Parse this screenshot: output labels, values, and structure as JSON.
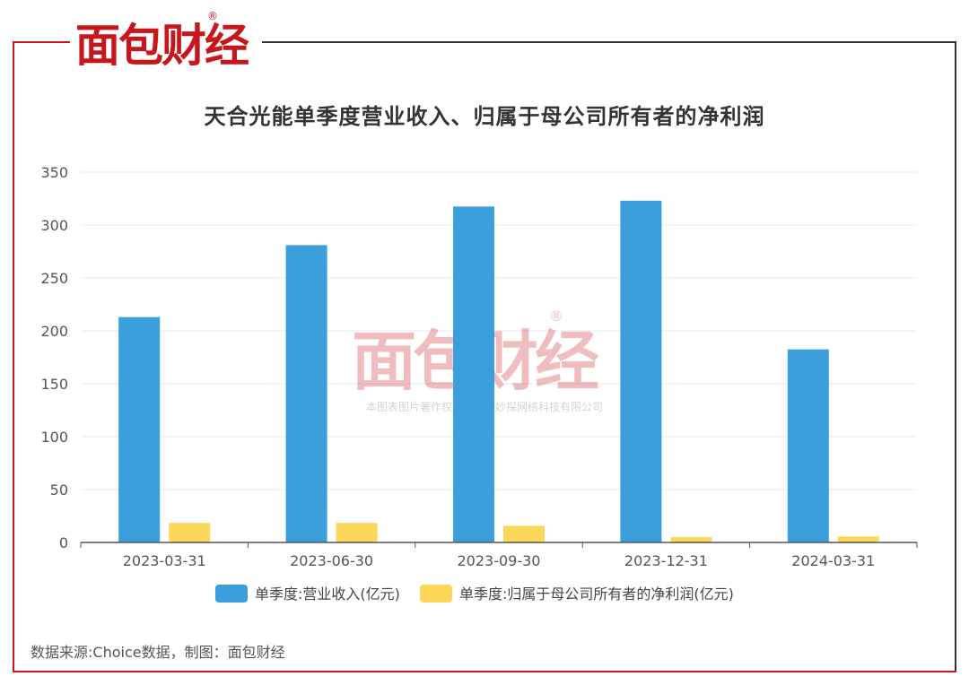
{
  "brand": {
    "logo_text": "面包财经",
    "registered_mark": "®"
  },
  "watermark": {
    "logo_text": "面包财经",
    "registered_mark": "®",
    "copyright": "本图表图片著作权属于上海妙探网络科技有限公司"
  },
  "source_note": "数据来源:Choice数据，制图：面包财经",
  "colors": {
    "frame_red": "#c8161d",
    "frame_dark": "#333333",
    "revenue": "#3a9fdb",
    "profit": "#fdd75a"
  },
  "chart_data": {
    "type": "bar",
    "title": "天合光能单季度营业收入、归属于母公司所有者的净利润",
    "categories": [
      "2023-03-31",
      "2023-06-30",
      "2023-09-30",
      "2023-12-31",
      "2024-03-31"
    ],
    "series": [
      {
        "name": "单季度:营业收入(亿元)",
        "values": [
          213.0,
          281.0,
          317.5,
          323.0,
          182.5
        ],
        "color": "#3a9fdb"
      },
      {
        "name": "单季度:归属于母公司所有者的净利润(亿元)",
        "values": [
          18.5,
          18.5,
          15.8,
          5.0,
          5.7
        ],
        "color": "#fdd75a"
      }
    ],
    "ylim": [
      0,
      350
    ],
    "yticks": [
      0,
      50,
      100,
      150,
      200,
      250,
      300,
      350
    ],
    "grid": true,
    "legend_position": "bottom"
  }
}
